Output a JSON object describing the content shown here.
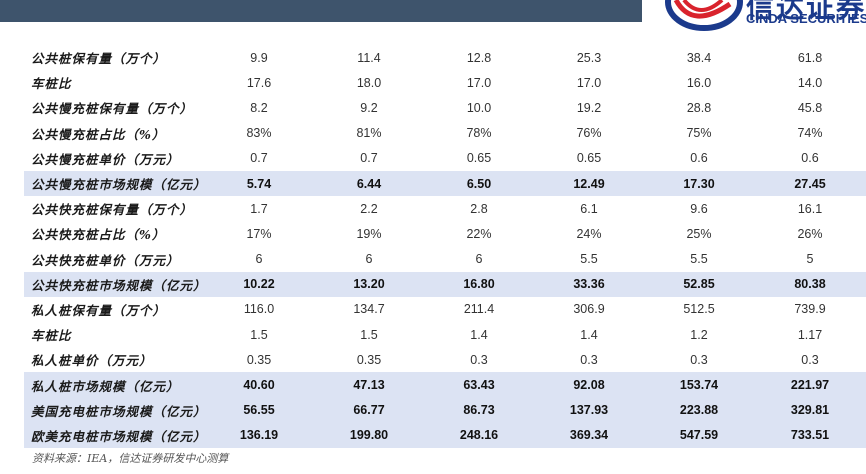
{
  "logo": {
    "cn": "信达证券",
    "en": "CINDA SECURITIES"
  },
  "rows": [
    {
      "label": "公共桩保有量（万个）",
      "values": [
        "9.9",
        "11.4",
        "12.8",
        "25.3",
        "38.4",
        "61.8"
      ],
      "highlight": false
    },
    {
      "label": "车桩比",
      "values": [
        "17.6",
        "18.0",
        "17.0",
        "17.0",
        "16.0",
        "14.0"
      ],
      "highlight": false
    },
    {
      "label": "公共慢充桩保有量（万个）",
      "values": [
        "8.2",
        "9.2",
        "10.0",
        "19.2",
        "28.8",
        "45.8"
      ],
      "highlight": false
    },
    {
      "label": "公共慢充桩占比（%）",
      "values": [
        "83%",
        "81%",
        "78%",
        "76%",
        "75%",
        "74%"
      ],
      "highlight": false
    },
    {
      "label": "公共慢充桩单价（万元）",
      "values": [
        "0.7",
        "0.7",
        "0.65",
        "0.65",
        "0.6",
        "0.6"
      ],
      "highlight": false
    },
    {
      "label": "公共慢充桩市场规模（亿元）",
      "values": [
        "5.74",
        "6.44",
        "6.50",
        "12.49",
        "17.30",
        "27.45"
      ],
      "highlight": true
    },
    {
      "label": "公共快充桩保有量（万个）",
      "values": [
        "1.7",
        "2.2",
        "2.8",
        "6.1",
        "9.6",
        "16.1"
      ],
      "highlight": false
    },
    {
      "label": "公共快充桩占比（%）",
      "values": [
        "17%",
        "19%",
        "22%",
        "24%",
        "25%",
        "26%"
      ],
      "highlight": false
    },
    {
      "label": "公共快充桩单价（万元）",
      "values": [
        "6",
        "6",
        "6",
        "5.5",
        "5.5",
        "5"
      ],
      "highlight": false
    },
    {
      "label": "公共快充桩市场规模（亿元）",
      "values": [
        "10.22",
        "13.20",
        "16.80",
        "33.36",
        "52.85",
        "80.38"
      ],
      "highlight": true
    },
    {
      "label": "私人桩保有量（万个）",
      "values": [
        "116.0",
        "134.7",
        "211.4",
        "306.9",
        "512.5",
        "739.9"
      ],
      "highlight": false
    },
    {
      "label": "车桩比",
      "values": [
        "1.5",
        "1.5",
        "1.4",
        "1.4",
        "1.2",
        "1.17"
      ],
      "highlight": false
    },
    {
      "label": "私人桩单价（万元）",
      "values": [
        "0.35",
        "0.35",
        "0.3",
        "0.3",
        "0.3",
        "0.3"
      ],
      "highlight": false
    },
    {
      "label": "私人桩市场规模（亿元）",
      "values": [
        "40.60",
        "47.13",
        "63.43",
        "92.08",
        "153.74",
        "221.97"
      ],
      "highlight": true
    },
    {
      "label": "美国充电桩市场规模（亿元）",
      "values": [
        "56.55",
        "66.77",
        "86.73",
        "137.93",
        "223.88",
        "329.81"
      ],
      "highlight": true
    },
    {
      "label": "欧美充电桩市场规模（亿元）",
      "values": [
        "136.19",
        "199.80",
        "248.16",
        "369.34",
        "547.59",
        "733.51"
      ],
      "highlight": true
    }
  ],
  "footnote": "资料来源：IEA，信达证券研发中心测算",
  "colors": {
    "header_bar": "#3e546c",
    "highlight_row": "#dce3f3",
    "logo_blue": "#1b3a8c",
    "logo_red": "#d9232d"
  }
}
